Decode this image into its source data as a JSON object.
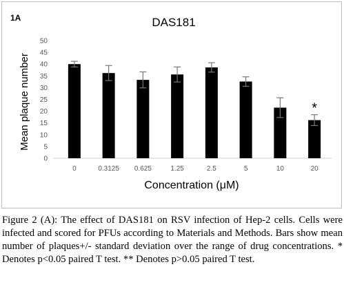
{
  "panel_label": "1A",
  "chart_data": {
    "type": "bar",
    "title": "DAS181",
    "xlabel": "Concentration (μM)",
    "ylabel": "Mean plaque number",
    "categories": [
      "0",
      "0.3125",
      "0.625",
      "1.25",
      "2.5",
      "5",
      "10",
      "20"
    ],
    "values": [
      40,
      36.2,
      33.3,
      35.6,
      38.6,
      32.6,
      21.5,
      16.2
    ],
    "errors": [
      1.2,
      3.2,
      3.4,
      3.2,
      2.0,
      2.0,
      4.2,
      2.3
    ],
    "annotations": [
      "",
      "",
      "",
      "",
      "",
      "",
      "",
      "*"
    ],
    "ylim": [
      0,
      50
    ],
    "yticks": [
      0,
      5,
      10,
      15,
      20,
      25,
      30,
      35,
      40,
      45,
      50
    ],
    "grid": false,
    "bar_color": "#000000"
  },
  "caption": {
    "lead": "Figure 2 (A):",
    "text": " The effect of DAS181 on RSV infection of Hep-2 cells. Cells were infected and scored for PFUs according to Materials and Methods. Bars show mean number of plaques+/- standard deviation over the range of drug concentrations. * Denotes p<0.05 paired T test. ** Denotes p>0.05 paired T test."
  }
}
